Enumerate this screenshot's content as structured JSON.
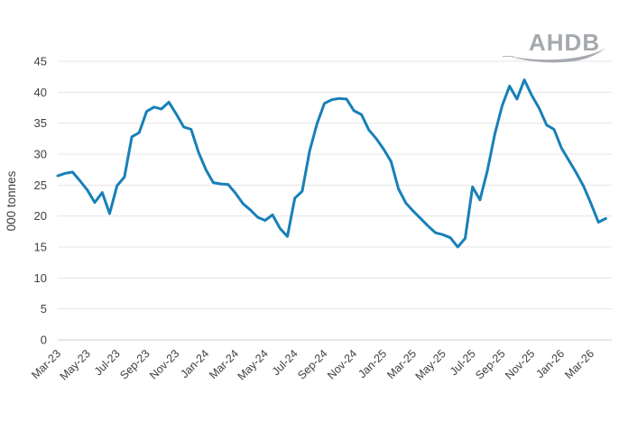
{
  "header": {
    "logo_text": "AHDB",
    "logo_color": "#a5a9ae"
  },
  "chart_data": {
    "type": "line",
    "title": "",
    "xlabel": "",
    "ylabel": "000 tonnes",
    "ylim": [
      0,
      45
    ],
    "ytick_step": 5,
    "ytick_labels": [
      "0",
      "5",
      "10",
      "15",
      "20",
      "25",
      "30",
      "35",
      "40",
      "45"
    ],
    "x_tick_labels": [
      "Mar-23",
      "May-23",
      "Jul-23",
      "Sep-23",
      "Nov-23",
      "Jan-24",
      "Mar-24",
      "May-24",
      "Jul-24",
      "Sep-24",
      "Nov-24",
      "Jan-25",
      "Mar-25",
      "May-25",
      "Jul-25",
      "Sep-25",
      "Nov-25",
      "Jan-26",
      "Mar-26"
    ],
    "x_tick_month_spacing": 2,
    "points_per_month": 2,
    "x_months_max": 37.4,
    "grid": "horizontal",
    "legend": "none",
    "background_color": "#ffffff",
    "axis_text_color": "#3f3f3f",
    "gridline_color": "#e4e4e4",
    "zero_line_color": "#cccccc",
    "series": [
      {
        "name": "000 tonnes",
        "color": "#1780b8",
        "line_width": 3,
        "values": [
          26.5,
          26.9,
          27.1,
          25.7,
          24.2,
          22.2,
          23.8,
          20.4,
          24.9,
          26.3,
          32.8,
          33.5,
          36.9,
          37.6,
          37.3,
          38.4,
          36.5,
          34.4,
          34.0,
          30.3,
          27.5,
          25.4,
          25.2,
          25.1,
          23.7,
          22.0,
          21.0,
          19.8,
          19.3,
          20.2,
          18.0,
          16.7,
          22.9,
          24.0,
          30.5,
          34.9,
          38.2,
          38.8,
          39.0,
          38.9,
          37.0,
          36.4,
          33.9,
          32.5,
          30.8,
          28.8,
          24.4,
          22.1,
          20.8,
          19.6,
          18.4,
          17.3,
          17.0,
          16.5,
          15.0,
          16.4,
          24.7,
          22.6,
          27.3,
          33.2,
          37.8,
          41.0,
          38.9,
          42.0,
          39.5,
          37.4,
          34.7,
          34.0,
          31.0,
          29.0,
          27.0,
          24.8,
          22.0,
          19.0,
          19.6
        ]
      }
    ]
  }
}
